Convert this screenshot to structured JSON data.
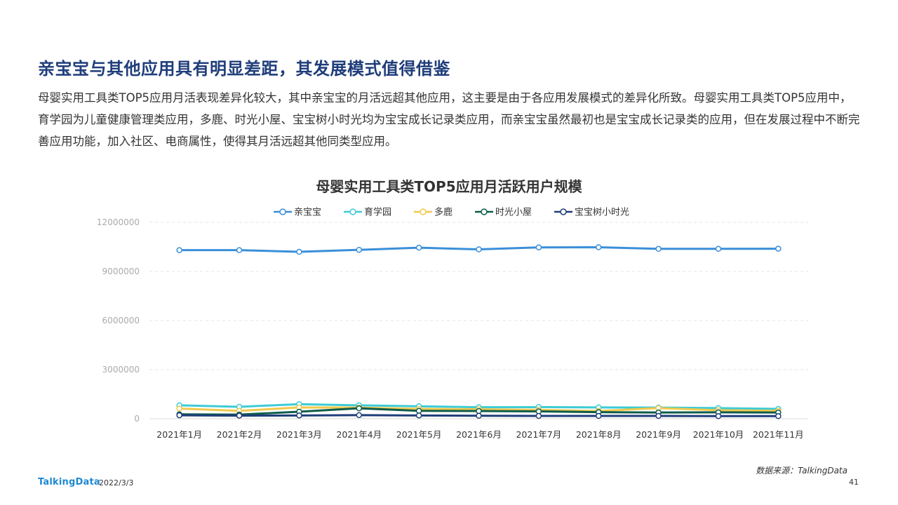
{
  "slide": {
    "headline": "亲宝宝与其他应用具有明显差距，其发展模式值得借鉴",
    "body": "母婴实用工具类TOP5应用月活表现差异化较大，其中亲宝宝的月活远超其他应用，这主要是由于各应用发展模式的差异化所致。母婴实用工具类TOP5应用中，育学园为儿童健康管理类应用，多鹿、时光小屋、宝宝树小时光均为宝宝成长记录类应用，而亲宝宝虽然最初也是宝宝成长记录类的应用，但在发展过程中不断完善应用功能，加入社区、电商属性，使得其月活远超其他同类型应用。",
    "source": "数据来源：TalkingData",
    "logo": "TalkingData",
    "date": "2022/3/3",
    "page": "41"
  },
  "chart_data": {
    "type": "line",
    "title": "母婴实用工具类TOP5应用月活跃用户规模",
    "xlabel": "",
    "ylabel": "",
    "categories": [
      "2021年1月",
      "2021年2月",
      "2021年3月",
      "2021年4月",
      "2021年5月",
      "2021年6月",
      "2021年7月",
      "2021年8月",
      "2021年9月",
      "2021年10月",
      "2021年11月"
    ],
    "ylim": [
      0,
      12000000
    ],
    "yticks": [
      "0",
      "3000000",
      "6000000",
      "9000000",
      "12000000"
    ],
    "grid": true,
    "legend_position": "top-center",
    "series": [
      {
        "name": "亲宝宝",
        "color": "#3a8fd9",
        "values": [
          10300000,
          10300000,
          10200000,
          10320000,
          10450000,
          10350000,
          10470000,
          10480000,
          10380000,
          10380000,
          10390000
        ]
      },
      {
        "name": "育学园",
        "color": "#3ecbd6",
        "values": [
          820000,
          730000,
          890000,
          820000,
          760000,
          700000,
          710000,
          690000,
          680000,
          650000,
          600000
        ]
      },
      {
        "name": "多鹿",
        "color": "#f2c94c",
        "values": [
          620000,
          480000,
          690000,
          680000,
          600000,
          580000,
          540000,
          470000,
          650000,
          520000,
          490000
        ]
      },
      {
        "name": "时光小屋",
        "color": "#0d5c4a",
        "values": [
          270000,
          250000,
          430000,
          640000,
          480000,
          470000,
          450000,
          400000,
          380000,
          390000,
          380000
        ]
      },
      {
        "name": "宝宝树小时光",
        "color": "#1f3d7a",
        "values": [
          210000,
          190000,
          200000,
          220000,
          200000,
          180000,
          170000,
          170000,
          170000,
          160000,
          160000
        ]
      }
    ]
  }
}
